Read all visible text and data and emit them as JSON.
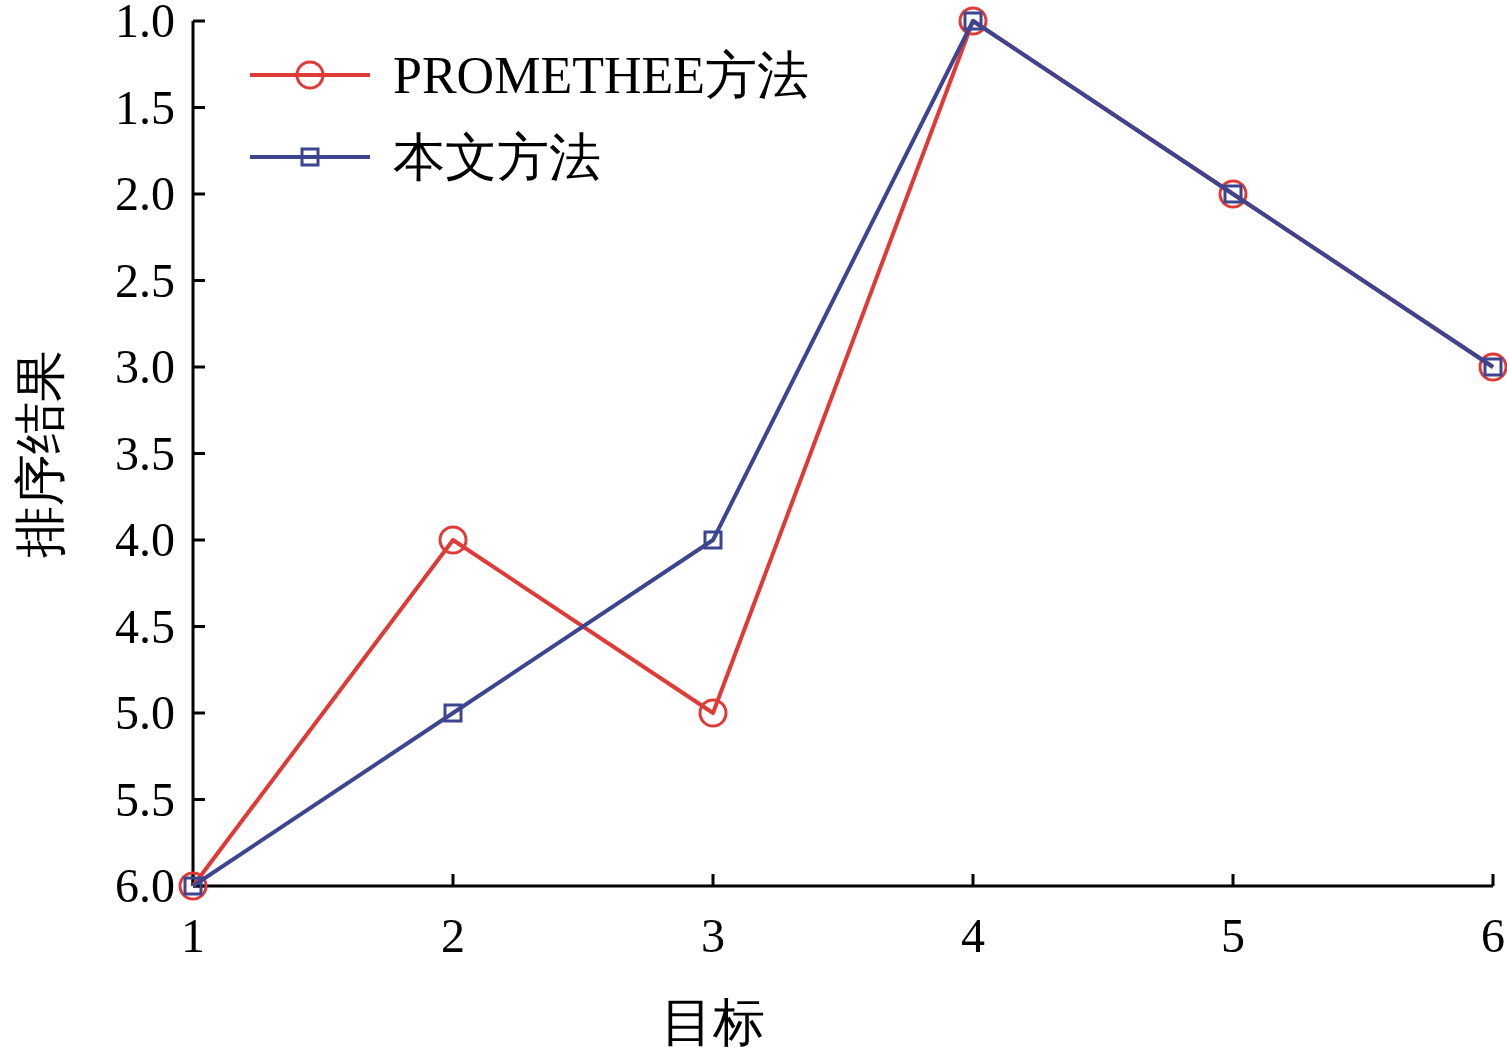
{
  "chart_data": {
    "type": "line",
    "xlabel": "目标",
    "ylabel": "排序结果",
    "x": [
      1,
      2,
      3,
      4,
      5,
      6
    ],
    "series": [
      {
        "name": "PROMETHEE方法",
        "color": "#e03a36",
        "marker": "circle",
        "values": [
          6,
          4,
          5,
          1,
          2,
          3
        ]
      },
      {
        "name": "本文方法",
        "color": "#3b4590",
        "marker": "square",
        "values": [
          6,
          5,
          4,
          1,
          2,
          3
        ]
      }
    ],
    "xlim": [
      1,
      6
    ],
    "xticks": [
      1,
      2,
      3,
      4,
      5,
      6
    ],
    "ylim": [
      6,
      1
    ],
    "yticks": [
      {
        "value": 1,
        "label": "1.0"
      },
      {
        "value": 1.5,
        "label": "1.5"
      },
      {
        "value": 2,
        "label": "2.0"
      },
      {
        "value": 2.5,
        "label": "2.5"
      },
      {
        "value": 3,
        "label": "3.0"
      },
      {
        "value": 3.5,
        "label": "3.5"
      },
      {
        "value": 4,
        "label": "4.0"
      },
      {
        "value": 4.5,
        "label": "4.5"
      },
      {
        "value": 5,
        "label": "5.0"
      },
      {
        "value": 5.5,
        "label": "5.5"
      },
      {
        "value": 6,
        "label": "6.0"
      }
    ],
    "grid": false,
    "legend": "top left",
    "line_style": "solid"
  }
}
